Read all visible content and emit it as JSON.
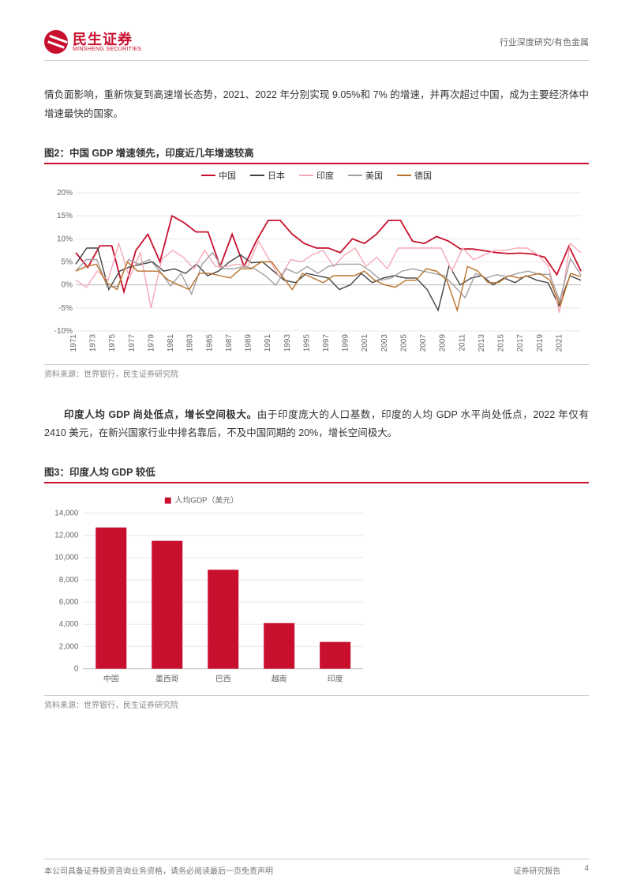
{
  "header": {
    "logo_cn": "民生证券",
    "logo_en": "MINSHENG SECURITIES",
    "breadcrumb": "行业深度研究/有色金属"
  },
  "para1": "情负面影响，重新恢复到高速增长态势，2021、2022 年分别实现 9.05%和 7% 的增速，并再次超过中国，成为主要经济体中增速最快的国家。",
  "chart2": {
    "title": "图2：中国 GDP 增速领先，印度近几年增速较高",
    "source": "资料来源：世界银行，民生证券研究院",
    "type": "line",
    "legend": [
      "中国",
      "日本",
      "印度",
      "美国",
      "德国"
    ],
    "colors": [
      "#c8102e",
      "#424242",
      "#f5a9b8",
      "#a0a0a0",
      "#b8722a"
    ],
    "ylim": [
      -10,
      20
    ],
    "ytick_step": 5,
    "y_suffix": "%",
    "x_labels": [
      "1971",
      "1973",
      "1975",
      "1977",
      "1979",
      "1981",
      "1983",
      "1985",
      "1987",
      "1989",
      "1991",
      "1993",
      "1995",
      "1997",
      "1999",
      "2001",
      "2003",
      "2005",
      "2007",
      "2009",
      "2011",
      "2013",
      "2015",
      "2017",
      "2019",
      "2021"
    ],
    "series": {
      "china": [
        7,
        3.8,
        8.5,
        8.5,
        -1.5,
        7.5,
        11,
        5,
        15,
        13.5,
        11.5,
        11.5,
        4,
        11,
        4,
        9.5,
        14,
        14,
        11,
        9,
        8,
        8,
        7,
        10,
        9,
        11,
        14,
        14,
        9.5,
        9,
        10.5,
        9.5,
        7.8,
        7.8,
        7.4,
        7,
        6.8,
        6.9,
        6.7,
        6,
        2.2,
        8.4,
        3
      ],
      "japan": [
        4.5,
        8,
        8,
        -1,
        3,
        4,
        4.5,
        5,
        3,
        3.5,
        2.5,
        4.5,
        2,
        3,
        5,
        6.5,
        4.8,
        5,
        3,
        1,
        0.5,
        2.5,
        2,
        1.5,
        -1,
        0,
        2.5,
        0.5,
        1.5,
        2,
        1.5,
        1.5,
        -1,
        -5.5,
        4.2,
        0,
        1.5,
        2,
        0,
        1.5,
        0.5,
        2,
        1,
        0.5,
        -4.5,
        2,
        1
      ],
      "india": [
        1,
        -0.5,
        3,
        1,
        9,
        1.5,
        7,
        -5,
        5.5,
        7.5,
        6,
        3.5,
        7.5,
        4,
        4,
        4.5,
        4,
        9.5,
        5.5,
        1.5,
        5.5,
        5,
        6.5,
        7.5,
        4,
        6.5,
        8,
        4,
        6,
        3.5,
        8,
        8,
        8,
        8,
        8,
        3,
        8,
        5.5,
        6.5,
        7.5,
        7.5,
        8,
        8,
        6.5,
        4,
        -6,
        9,
        7
      ],
      "usa": [
        3,
        5.5,
        5.5,
        -0.5,
        -0.3,
        5.5,
        4.5,
        5.5,
        3,
        -0.2,
        2.5,
        -2,
        4.5,
        7,
        3.5,
        3.5,
        4,
        3.5,
        2,
        -0.1,
        3.5,
        2.5,
        4,
        2.5,
        4,
        4.5,
        4.5,
        4.5,
        3,
        1,
        1.5,
        3,
        3.5,
        3,
        2.5,
        2,
        -0.3,
        -2.8,
        2.5,
        1.5,
        2.2,
        1.8,
        2.5,
        3,
        2.3,
        2.3,
        -3.4,
        5.7,
        2.1
      ],
      "germany": [
        3,
        4,
        4.5,
        0.5,
        -1,
        5,
        3,
        3,
        3,
        1,
        0,
        -1,
        2.5,
        2.5,
        2,
        1.5,
        3.5,
        3.5,
        5,
        5,
        2,
        -1,
        2.5,
        1.5,
        0.5,
        2,
        2,
        2,
        3,
        1,
        0,
        -0.5,
        1,
        1,
        3.5,
        3,
        1,
        -5.5,
        4,
        3,
        0.5,
        0.5,
        2,
        1.5,
        2,
        2.5,
        1,
        -4.5,
        2.5,
        1.8
      ]
    }
  },
  "para2_bold": "印度人均 GDP 尚处低点，增长空间极大。",
  "para2_rest": "由于印度庞大的人口基数，印度的人均 GDP 水平尚处低点，2022 年仅有 2410 美元，在新兴国家行业中排名靠后，不及中国同期的 20%，增长空间极大。",
  "chart3": {
    "title": "图3：印度人均 GDP 较低",
    "source": "资料来源：世界银行，民生证券研究院",
    "type": "bar",
    "legend_label": "人均GDP（美元）",
    "bar_color": "#c8102e",
    "categories": [
      "中国",
      "墨西哥",
      "巴西",
      "越南",
      "印度"
    ],
    "values": [
      12700,
      11500,
      8900,
      4100,
      2410
    ],
    "ylim": [
      0,
      14000
    ],
    "ytick_step": 2000
  },
  "footer": {
    "left": "本公司具备证券投资咨询业务资格，请务必阅读最后一页免责声明",
    "right1": "证券研究报告",
    "right2": "4"
  }
}
